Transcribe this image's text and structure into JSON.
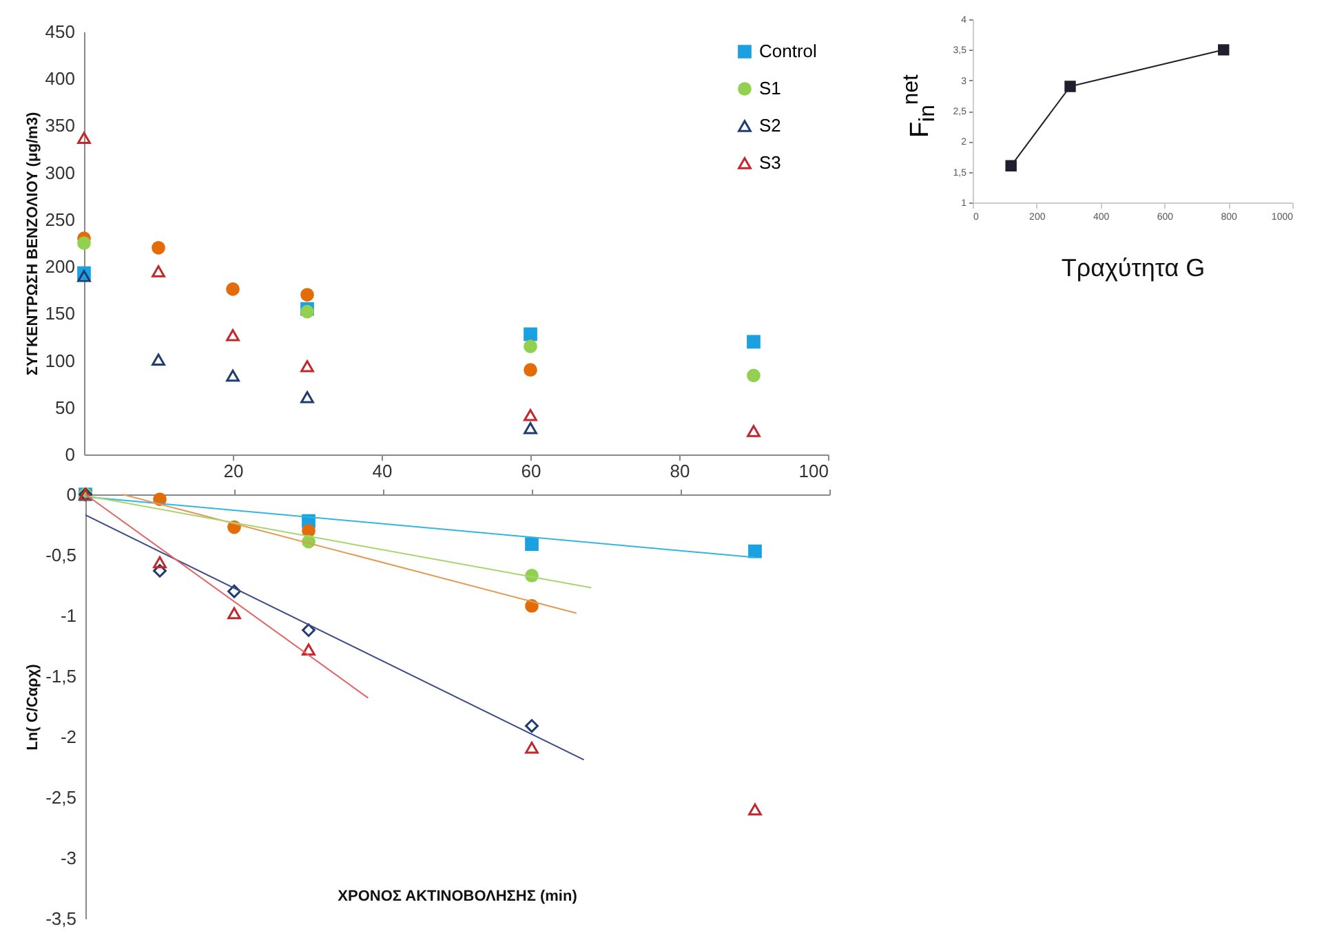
{
  "chart_data": [
    {
      "type": "scatter",
      "ylabel": "ΣΥΓΚΕΝΤΡΩΣΗ ΒΕΝΖΟΛΙΟΥ (μg/m3)",
      "x": [
        0,
        10,
        20,
        30,
        60,
        90
      ],
      "xlim": [
        0,
        100
      ],
      "xticks": [
        20,
        40,
        60,
        80,
        100
      ],
      "ylim": [
        0,
        450
      ],
      "yticks": [
        0,
        50,
        100,
        150,
        200,
        250,
        300,
        350,
        400,
        450
      ],
      "legend": "top right",
      "grid": false,
      "series": [
        {
          "name": "Control",
          "color": "#1ba1e2",
          "marker": "square",
          "values": [
            193,
            null,
            null,
            155,
            128,
            120
          ]
        },
        {
          "color": "#e36c09",
          "marker": "circle",
          "values": [
            230,
            220,
            176,
            170,
            90,
            null
          ]
        },
        {
          "name": "S1",
          "color": "#92d050",
          "marker": "circle",
          "values": [
            225,
            null,
            null,
            152,
            115,
            84
          ]
        },
        {
          "name": "S2",
          "color": "#1f3b73",
          "marker": "triangle",
          "values": [
            190,
            101,
            84,
            61,
            28,
            null
          ]
        },
        {
          "name": "S3",
          "color": "#c0282d",
          "marker": "triangle",
          "values": [
            337,
            195,
            127,
            94,
            42,
            25
          ]
        }
      ]
    },
    {
      "type": "scatter",
      "xlabel": "ΧΡΟΝΟΣ ΑΚΤΙΝΟΒΟΛΗΣΗΣ (min)",
      "ylabel": "Ln( C/Cαρχ)",
      "x": [
        0,
        10,
        20,
        30,
        60,
        90
      ],
      "xlim": [
        0,
        100
      ],
      "xticks": [
        20,
        40,
        60,
        80,
        100
      ],
      "tick_labels": "y",
      "ylim": [
        -3.5,
        0
      ],
      "yticks": [
        0,
        {
          "value": -0.5,
          "label": "-0,5"
        },
        -1,
        {
          "value": -1.5,
          "label": "-1,5"
        },
        -2,
        {
          "value": -2.5,
          "label": "-2,5"
        },
        -3,
        {
          "value": -3.5,
          "label": "-3,5"
        }
      ],
      "grid": false,
      "series": [
        {
          "color": "#1ba1e2",
          "marker": "square",
          "values": [
            0,
            null,
            null,
            -0.22,
            -0.41,
            -0.47
          ]
        },
        {
          "color": "#e36c09",
          "marker": "circle",
          "values": [
            0,
            -0.04,
            -0.27,
            -0.3,
            -0.92,
            null
          ]
        },
        {
          "color": "#92d050",
          "marker": "circle",
          "values": [
            0,
            null,
            null,
            -0.39,
            -0.67,
            null
          ]
        },
        {
          "color": "#1f3b73",
          "marker": "diamond",
          "values": [
            0,
            -0.63,
            -0.8,
            -1.12,
            -1.91,
            null
          ]
        },
        {
          "color": "#c0282d",
          "marker": "triangle",
          "values": [
            0,
            -0.56,
            -0.98,
            -1.28,
            -2.09,
            -2.6
          ]
        },
        {
          "type": "line",
          "color": "#31b6e0",
          "x": [
            0,
            90
          ],
          "values": [
            -0.02,
            -0.52
          ]
        },
        {
          "type": "line",
          "color": "#e59a55",
          "x": [
            5,
            66
          ],
          "values": [
            0,
            -0.98
          ]
        },
        {
          "type": "line",
          "color": "#a9d46f",
          "x": [
            0,
            68
          ],
          "values": [
            -0.01,
            -0.77
          ]
        },
        {
          "type": "line",
          "color": "#3c4c88",
          "x": [
            0,
            67
          ],
          "values": [
            -0.17,
            -2.19
          ]
        },
        {
          "type": "line",
          "color": "#e06666",
          "x": [
            0,
            38
          ],
          "values": [
            0,
            -1.68
          ]
        }
      ]
    },
    {
      "type": "line",
      "xlabel": "Τραχύτητα G",
      "ylabel": "F$_{in}$$^{net}$",
      "x": [
        120,
        305,
        785
      ],
      "xlim": [
        0,
        1000
      ],
      "xticks": [
        0,
        200,
        400,
        600,
        800,
        1000
      ],
      "ylim": [
        1,
        4
      ],
      "yticks": [
        1,
        {
          "value": 1.5,
          "label": "1,5"
        },
        2,
        {
          "value": 2.5,
          "label": "2,5"
        },
        3,
        {
          "value": 3.5,
          "label": "3,5"
        },
        4
      ],
      "grid": false,
      "series": [
        {
          "color": "#1f1f2e",
          "marker": "square",
          "values": [
            1.6,
            2.9,
            3.5
          ]
        }
      ]
    }
  ]
}
